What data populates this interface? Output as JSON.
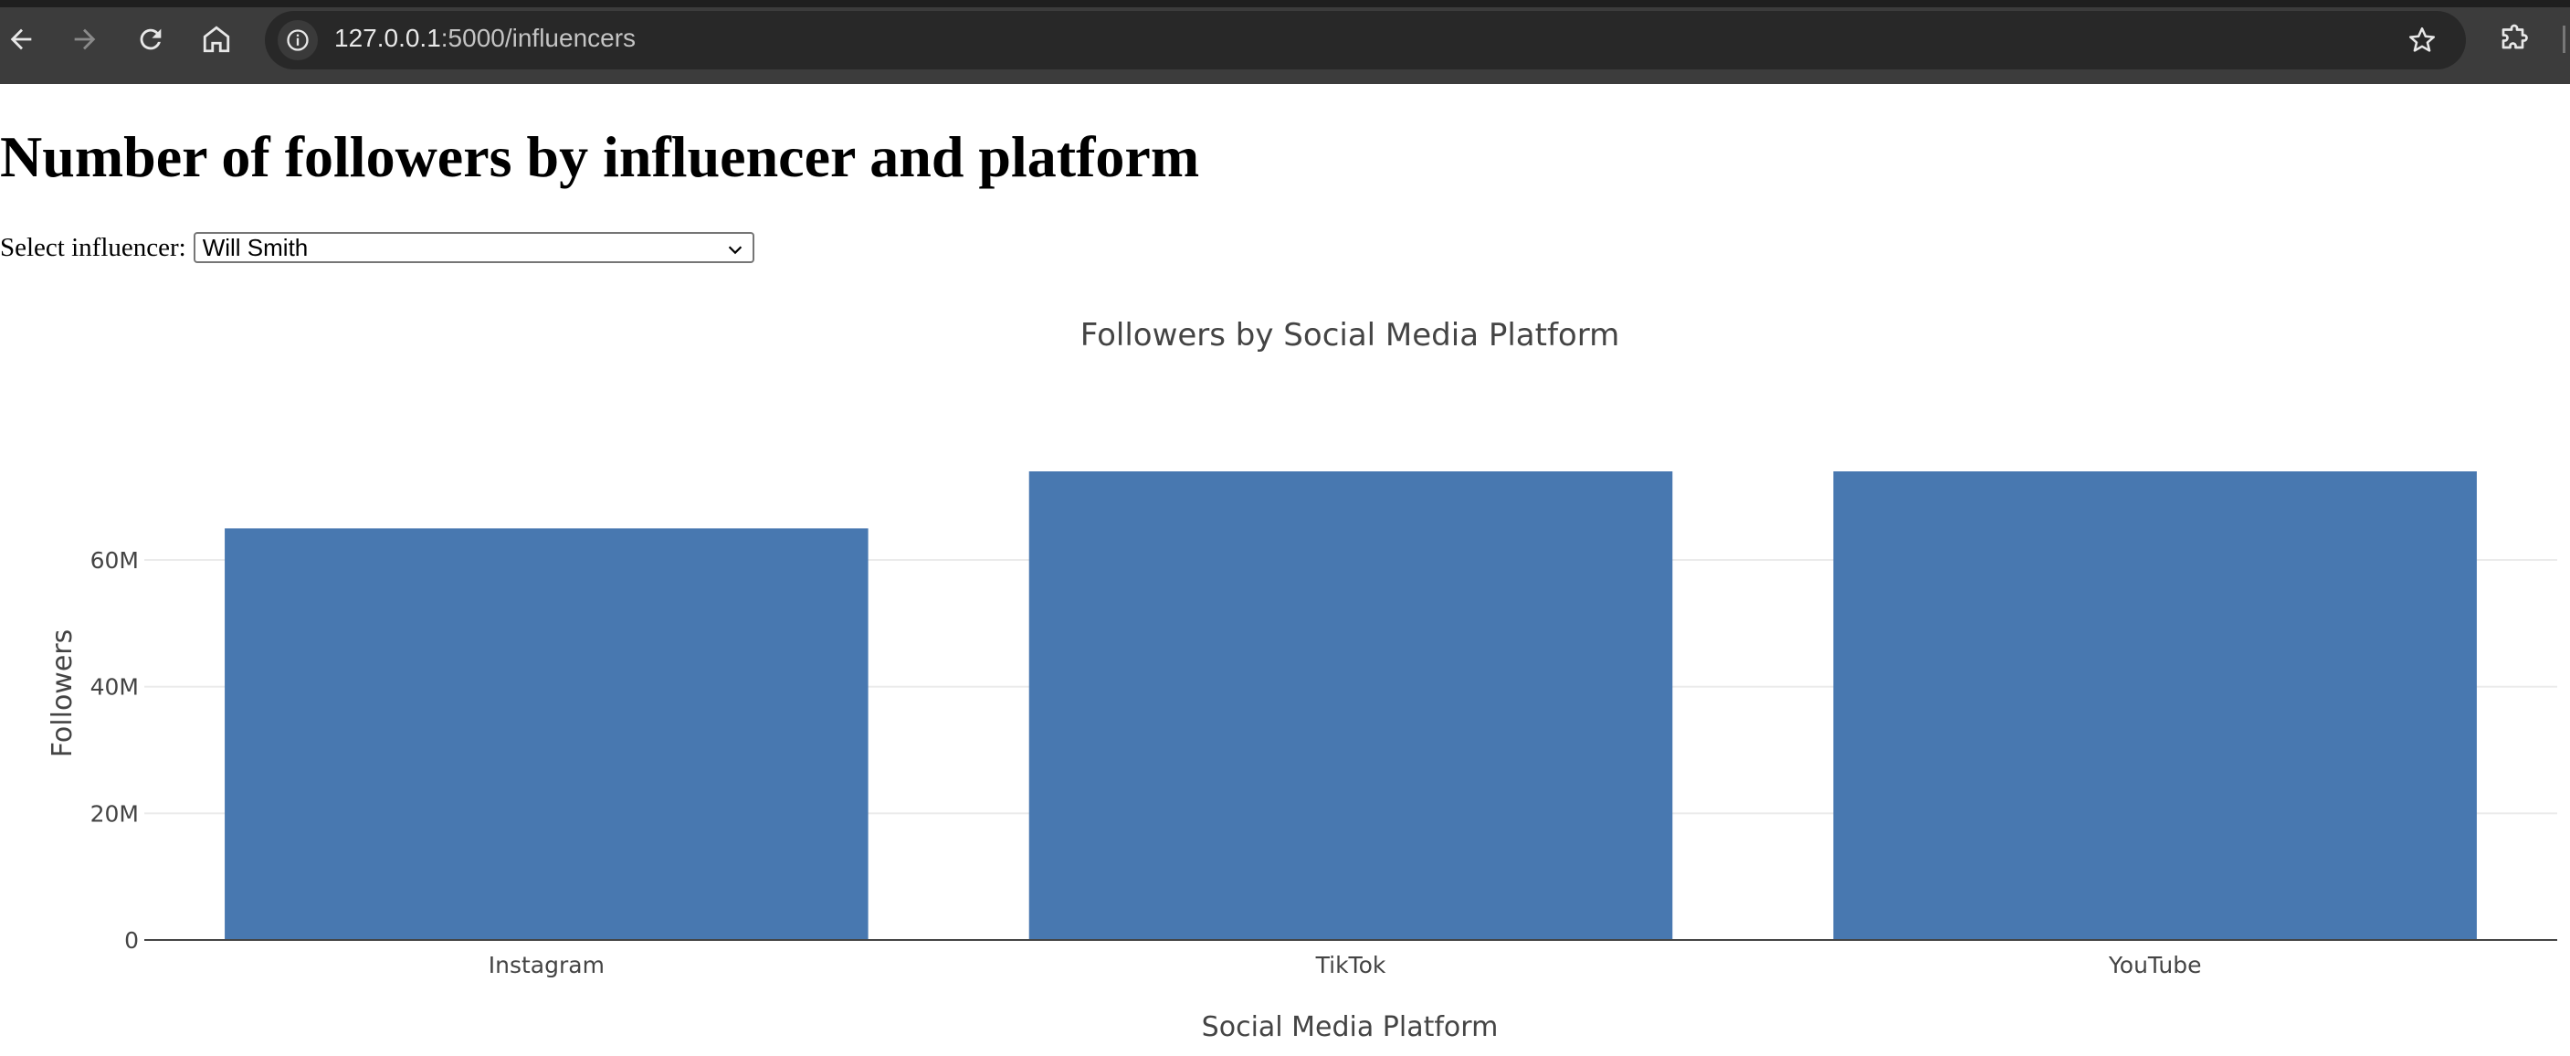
{
  "browser": {
    "url_host": "127.0.0.1",
    "url_rest": ":5000/influencers"
  },
  "page": {
    "title": "Number of followers by influencer and platform",
    "select_label": "Select influencer:",
    "select_value": "Will Smith"
  },
  "colors": {
    "bar": "#4878b0",
    "grid": "#ebebeb",
    "axis": "#444444"
  },
  "chart_data": {
    "type": "bar",
    "title": "Followers by Social Media Platform",
    "xlabel": "Social Media Platform",
    "ylabel": "Followers",
    "categories": [
      "Instagram",
      "TikTok",
      "YouTube"
    ],
    "values": [
      65000000,
      74000000,
      74000000
    ],
    "ylim": [
      0,
      74000000
    ],
    "yticks": [
      0,
      20000000,
      40000000,
      60000000
    ],
    "ytick_labels": [
      "0",
      "20M",
      "40M",
      "60M"
    ],
    "grid": true,
    "legend": "none"
  }
}
